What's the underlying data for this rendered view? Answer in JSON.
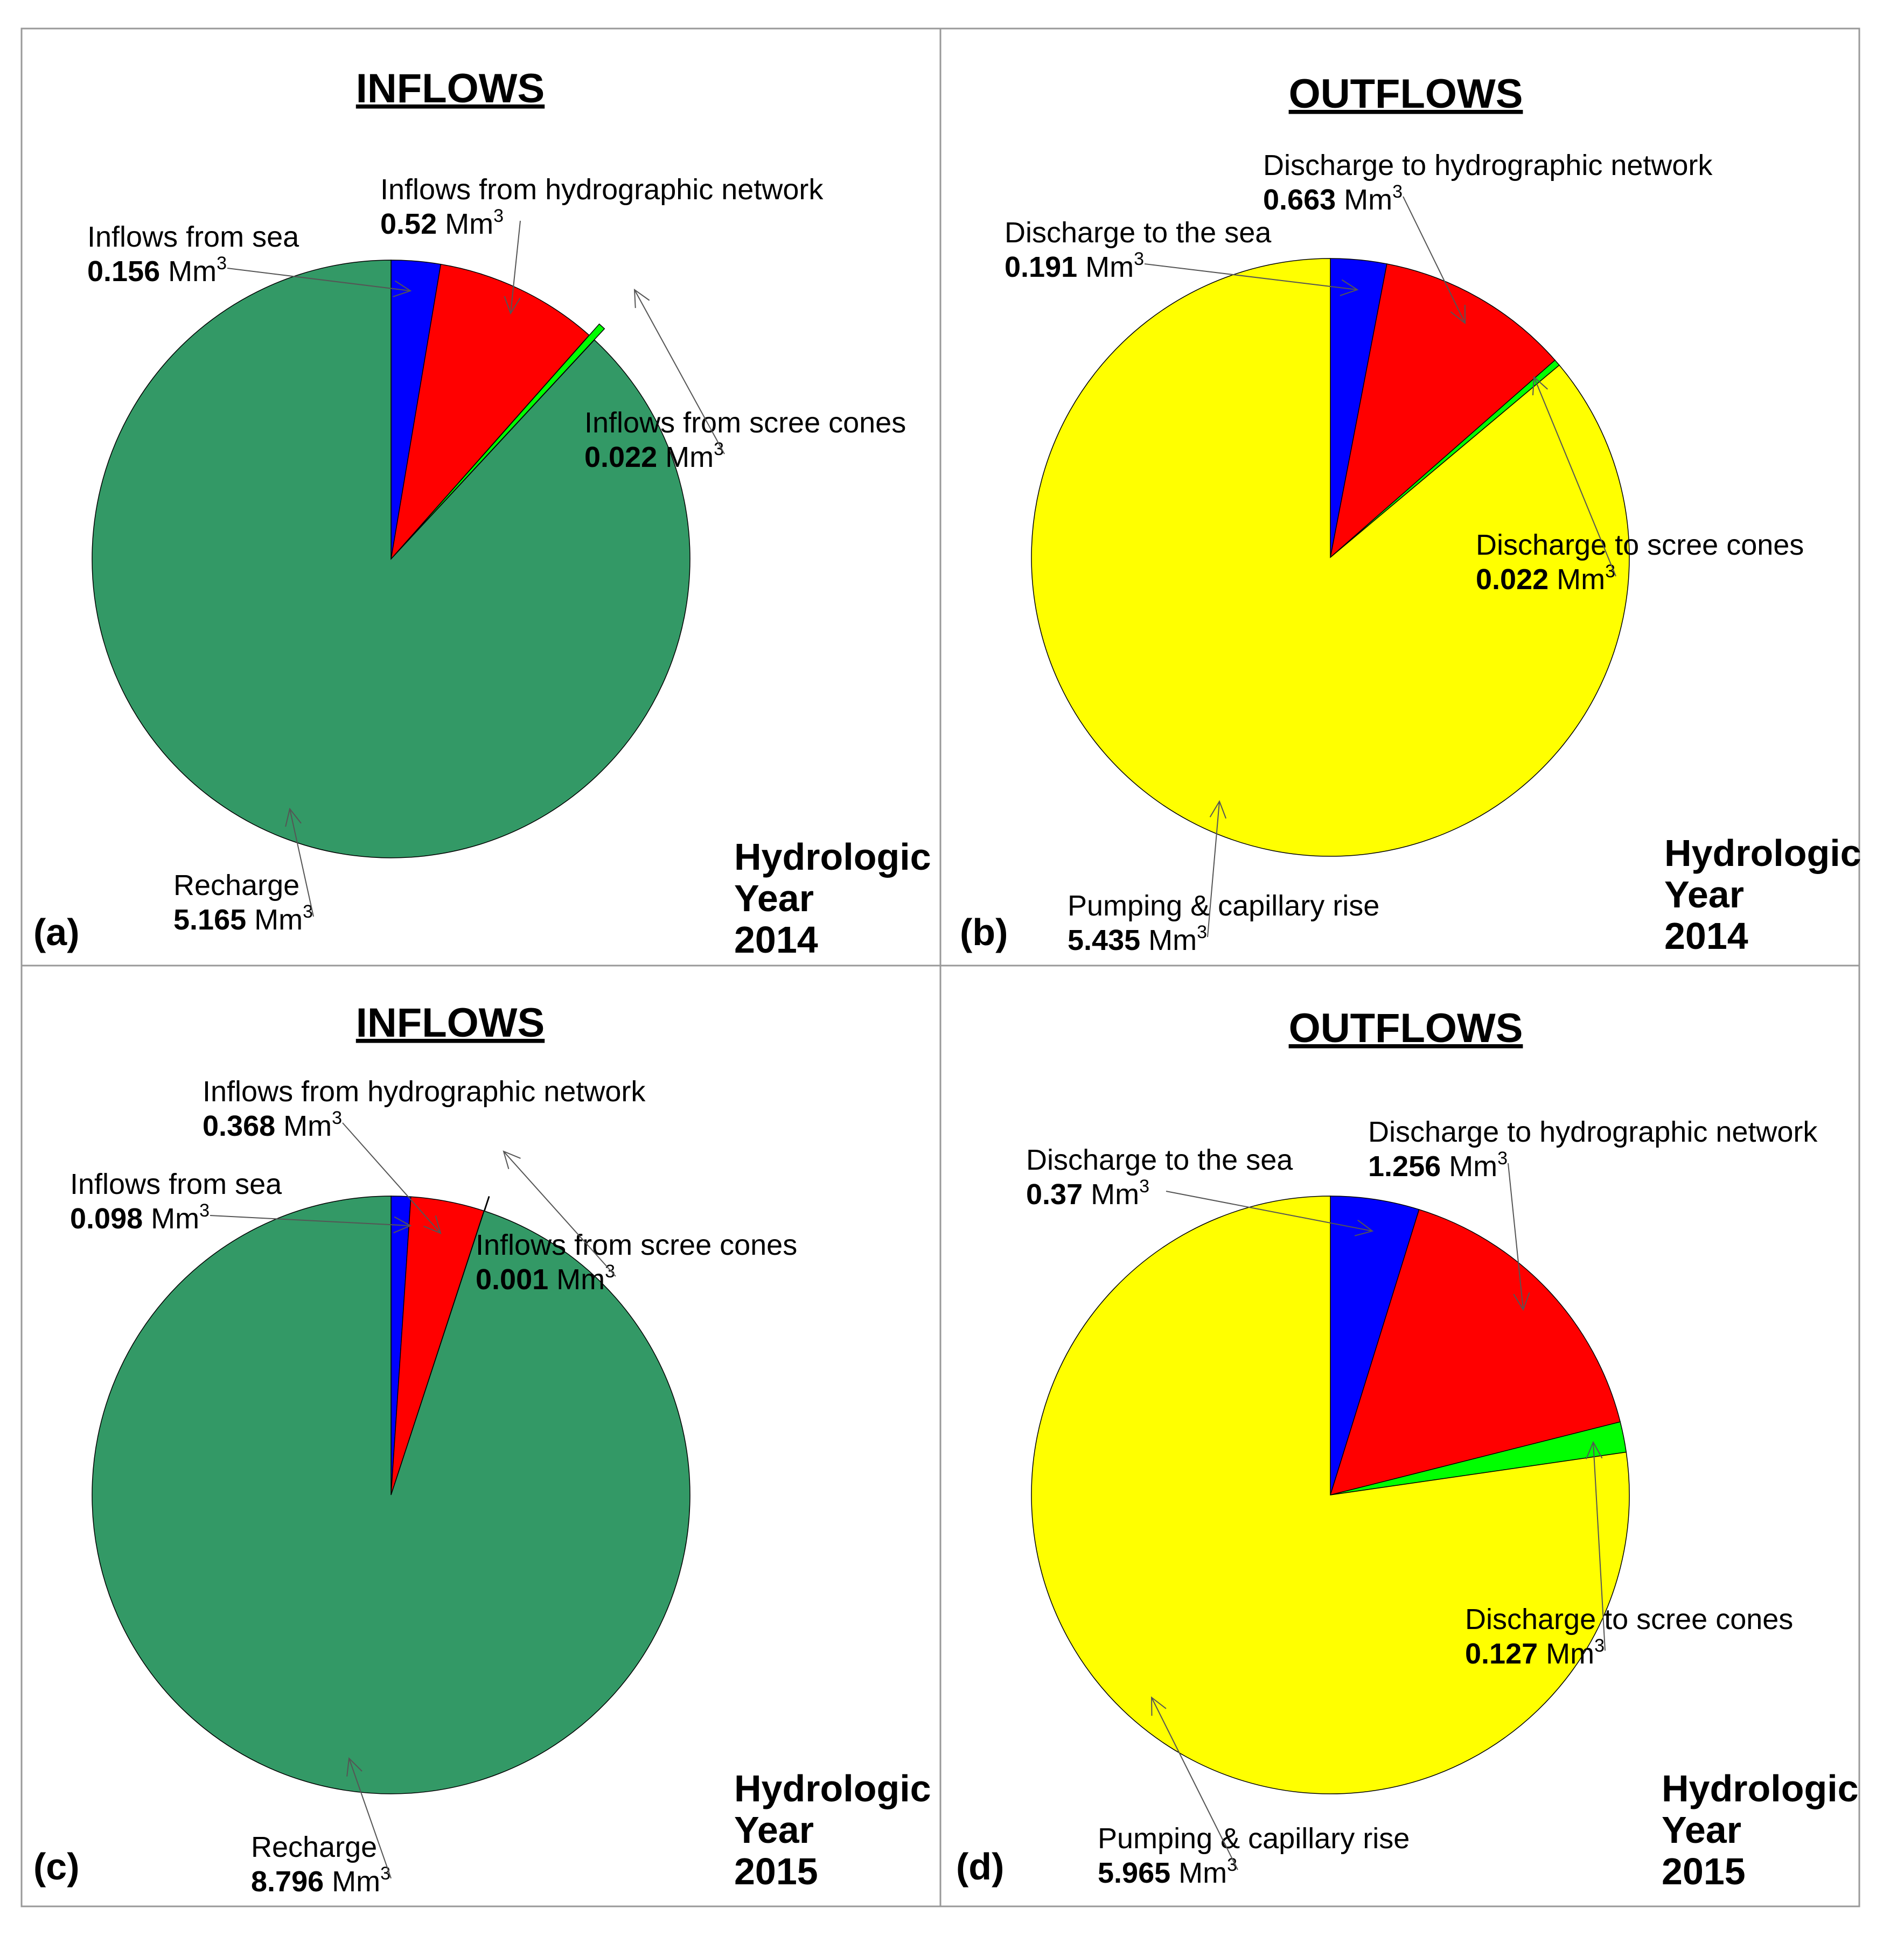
{
  "unit": "Mm",
  "unit_exponent": "3",
  "colors": {
    "sea": "#0000FF",
    "hydrographic": "#FF0000",
    "scree": "#00FF00",
    "recharge": "#339966",
    "pumping": "#FFFF00",
    "frame": "#999999"
  },
  "chart_data": [
    {
      "type": "pie",
      "panel": "(a)",
      "title": "INFLOWS",
      "year_lines": [
        "Hydrologic",
        "Year",
        "2014"
      ],
      "series": [
        {
          "name": "Inflows from sea",
          "value": 0.156,
          "value_text": "0.156",
          "color": "#0000FF"
        },
        {
          "name": "Inflows from hydrographic network",
          "value": 0.52,
          "value_text": "0.52",
          "color": "#FF0000"
        },
        {
          "name": "Inflows from scree cones",
          "value": 0.022,
          "value_text": "0.022",
          "color": "#00FF00",
          "exploded": true
        },
        {
          "name": "Recharge",
          "value": 5.165,
          "value_text": "5.165",
          "color": "#339966"
        }
      ]
    },
    {
      "type": "pie",
      "panel": "(b)",
      "title": "OUTFLOWS",
      "year_lines": [
        "Hydrologic",
        "Year",
        "2014"
      ],
      "series": [
        {
          "name": "Discharge to the sea",
          "value": 0.191,
          "value_text": "0.191",
          "color": "#0000FF"
        },
        {
          "name": "Discharge to hydrographic network",
          "value": 0.663,
          "value_text": "0.663",
          "color": "#FF0000"
        },
        {
          "name": "Discharge to scree cones",
          "value": 0.022,
          "value_text": "0.022",
          "color": "#00FF00"
        },
        {
          "name": "Pumping & capillary rise",
          "value": 5.435,
          "value_text": "5.435",
          "color": "#FFFF00"
        }
      ]
    },
    {
      "type": "pie",
      "panel": "(c)",
      "title": "INFLOWS",
      "year_lines": [
        "Hydrologic",
        "Year",
        "2015"
      ],
      "series": [
        {
          "name": "Inflows from sea",
          "value": 0.098,
          "value_text": "0.098",
          "color": "#0000FF"
        },
        {
          "name": "Inflows from hydrographic network",
          "value": 0.368,
          "value_text": "0.368",
          "color": "#FF0000"
        },
        {
          "name": "Inflows from scree cones",
          "value": 0.001,
          "value_text": "0.001",
          "color": "#00FF00",
          "exploded": true
        },
        {
          "name": "Recharge",
          "value": 8.796,
          "value_text": "8.796",
          "color": "#339966"
        }
      ]
    },
    {
      "type": "pie",
      "panel": "(d)",
      "title": "OUTFLOWS",
      "year_lines": [
        "Hydrologic",
        "Year",
        "2015"
      ],
      "series": [
        {
          "name": "Discharge to the sea",
          "value": 0.37,
          "value_text": "0.37",
          "color": "#0000FF"
        },
        {
          "name": "Discharge to hydrographic network",
          "value": 1.256,
          "value_text": "1.256",
          "color": "#FF0000"
        },
        {
          "name": "Discharge to scree cones",
          "value": 0.127,
          "value_text": "0.127",
          "color": "#00FF00"
        },
        {
          "name": "Pumping & capillary rise",
          "value": 5.965,
          "value_text": "5.965",
          "color": "#FFFF00"
        }
      ]
    }
  ]
}
